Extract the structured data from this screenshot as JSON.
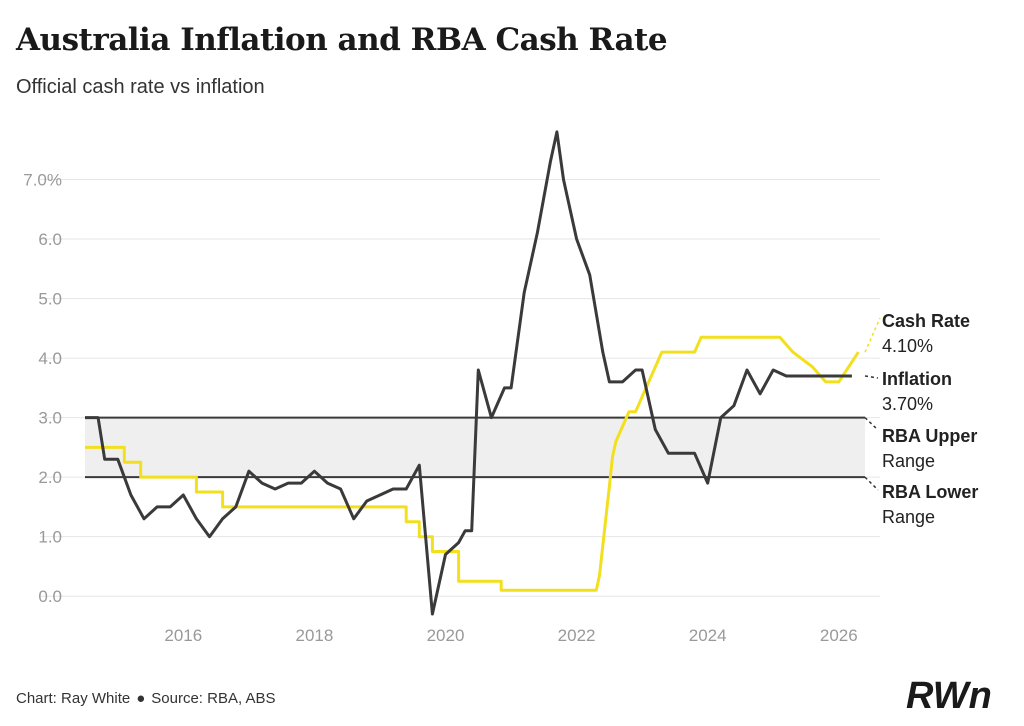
{
  "title": "Australia Inflation and RBA Cash Rate",
  "subtitle": "Official cash rate vs inflation",
  "source": {
    "chart_by": "Chart: Ray White",
    "separator": "●",
    "sources": "Source: RBA, ABS"
  },
  "logo_text": "RWn",
  "colors": {
    "cash_rate": "#f2e01e",
    "inflation": "#3a3a3a",
    "band": "#efefef",
    "band_lines": "#3a3a3a",
    "grid": "#e6e6e6",
    "tick_text": "#999999"
  },
  "chart_data": {
    "type": "line",
    "title": "Australia Inflation and RBA Cash Rate",
    "subtitle": "Official cash rate vs inflation",
    "xlim": [
      2014.5,
      2026.4
    ],
    "ylim": [
      -0.4,
      8.0
    ],
    "grid": true,
    "x_ticks": [
      2016,
      2018,
      2020,
      2022,
      2024,
      2026
    ],
    "x_tick_labels": [
      "2016",
      "2018",
      "2020",
      "2022",
      "2024",
      "2026"
    ],
    "y_ticks": [
      0,
      1,
      2,
      3,
      4,
      5,
      6,
      7
    ],
    "y_tick_labels": [
      "0.0",
      "1.0",
      "2.0",
      "3.0",
      "4.0",
      "5.0",
      "6.0",
      "7.0%"
    ],
    "bands": [
      {
        "name": "RBA Upper Range",
        "value": 3.0,
        "label": [
          "RBA Upper",
          "Range"
        ]
      },
      {
        "name": "RBA Lower Range",
        "value": 2.0,
        "label": [
          "RBA Lower",
          "Range"
        ]
      }
    ],
    "series": [
      {
        "name": "Cash Rate",
        "value_label": "4.10%",
        "x": [
          2014.5,
          2015.1,
          2015.1,
          2015.35,
          2015.35,
          2016.2,
          2016.2,
          2016.6,
          2016.6,
          2019.4,
          2019.4,
          2019.6,
          2019.6,
          2019.8,
          2019.8,
          2020.2,
          2020.2,
          2020.85,
          2020.85,
          2022.3,
          2022.35,
          2022.4,
          2022.45,
          2022.5,
          2022.55,
          2022.6,
          2022.7,
          2022.8,
          2022.9,
          2023.0,
          2023.1,
          2023.2,
          2023.3,
          2023.5,
          2023.8,
          2023.9,
          2024.2,
          2024.8,
          2025.1,
          2025.3,
          2025.6,
          2025.8,
          2026.0,
          2026.3
        ],
        "y": [
          2.5,
          2.5,
          2.25,
          2.25,
          2.0,
          2.0,
          1.75,
          1.75,
          1.5,
          1.5,
          1.25,
          1.25,
          1.0,
          1.0,
          0.75,
          0.75,
          0.25,
          0.25,
          0.1,
          0.1,
          0.35,
          0.85,
          1.35,
          1.85,
          2.35,
          2.6,
          2.85,
          3.1,
          3.1,
          3.35,
          3.6,
          3.85,
          4.1,
          4.1,
          4.1,
          4.35,
          4.35,
          4.35,
          4.35,
          4.1,
          3.85,
          3.6,
          3.6,
          4.1
        ]
      },
      {
        "name": "Inflation",
        "value_label": "3.70%",
        "x": [
          2014.5,
          2014.7,
          2014.8,
          2015.0,
          2015.2,
          2015.4,
          2015.6,
          2015.8,
          2016.0,
          2016.2,
          2016.4,
          2016.6,
          2016.8,
          2017.0,
          2017.2,
          2017.4,
          2017.6,
          2017.8,
          2018.0,
          2018.2,
          2018.4,
          2018.6,
          2018.8,
          2019.0,
          2019.2,
          2019.4,
          2019.6,
          2019.8,
          2020.0,
          2020.2,
          2020.3,
          2020.4,
          2020.5,
          2020.7,
          2020.9,
          2021.0,
          2021.2,
          2021.4,
          2021.6,
          2021.7,
          2021.8,
          2022.0,
          2022.2,
          2022.4,
          2022.5,
          2022.7,
          2022.9,
          2023.0,
          2023.2,
          2023.4,
          2023.6,
          2023.8,
          2024.0,
          2024.2,
          2024.4,
          2024.6,
          2024.8,
          2025.0,
          2025.2,
          2025.4,
          2025.55,
          2025.7,
          2025.9,
          2026.0,
          2026.2
        ],
        "y": [
          3.0,
          3.0,
          2.3,
          2.3,
          1.7,
          1.3,
          1.5,
          1.5,
          1.7,
          1.3,
          1.0,
          1.3,
          1.5,
          2.1,
          1.9,
          1.8,
          1.9,
          1.9,
          2.1,
          1.9,
          1.8,
          1.3,
          1.6,
          1.7,
          1.8,
          1.8,
          2.2,
          -0.3,
          0.7,
          0.9,
          1.1,
          1.1,
          3.8,
          3.0,
          3.5,
          3.5,
          5.1,
          6.1,
          7.3,
          7.8,
          7.0,
          6.0,
          5.4,
          4.1,
          3.6,
          3.6,
          3.8,
          3.8,
          2.8,
          2.4,
          2.4,
          2.4,
          1.9,
          3.0,
          3.2,
          3.8,
          3.4,
          3.8,
          3.7,
          3.7,
          3.7,
          3.7,
          3.7,
          3.7,
          3.7
        ]
      }
    ]
  }
}
